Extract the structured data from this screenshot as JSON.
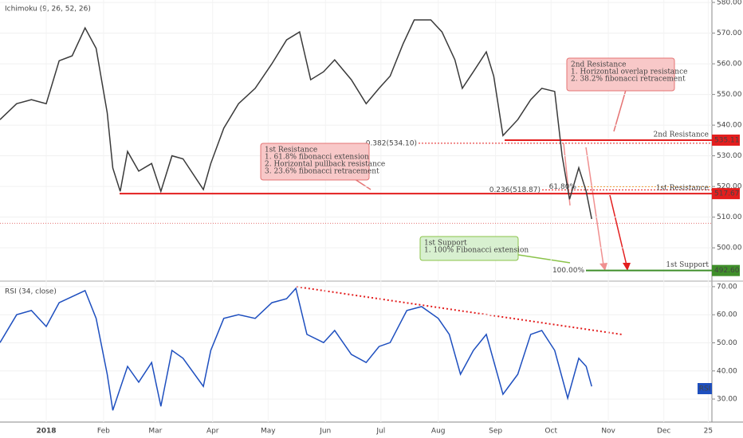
{
  "chart_data": [
    {
      "type": "line",
      "title": "Ichimoku (9, 26, 52, 26)",
      "color": "#3a3a3a",
      "x": [
        -25,
        -16,
        -8,
        0,
        7,
        14,
        21,
        27,
        33,
        36,
        40,
        44,
        50,
        57,
        62,
        68,
        74,
        85,
        89,
        96,
        104,
        113,
        122,
        130,
        137,
        143,
        150,
        156,
        165,
        173,
        180,
        186,
        193,
        199,
        208,
        214,
        221,
        225,
        231,
        238,
        242,
        247,
        255,
        262,
        268,
        275,
        279,
        283,
        288,
        292,
        295
      ],
      "values": [
        541.8,
        547,
        548.3,
        547,
        561,
        562.6,
        571.7,
        565,
        544,
        526,
        518.4,
        531.4,
        525,
        527.5,
        518.4,
        530,
        529,
        519,
        527.5,
        539,
        547,
        552,
        560,
        567.8,
        570.4,
        554.8,
        557.4,
        561.3,
        554.8,
        547,
        552,
        556,
        566.5,
        574.3,
        574.3,
        570.4,
        561.3,
        552,
        557.4,
        563.9,
        556,
        536.6,
        541.8,
        548.3,
        552,
        551,
        530,
        515.8,
        526.1,
        518.4,
        509.4
      ],
      "xlim": [
        -25,
        360
      ],
      "ylim": [
        489.4,
        580.8
      ],
      "xticks": [
        {
          "value": 0,
          "label": "2018"
        },
        {
          "value": 31,
          "label": "Feb"
        },
        {
          "value": 59,
          "label": "Mar"
        },
        {
          "value": 90,
          "label": "Apr"
        },
        {
          "value": 120,
          "label": "May"
        },
        {
          "value": 151,
          "label": "Jun"
        },
        {
          "value": 181,
          "label": "Jul"
        },
        {
          "value": 212,
          "label": "Aug"
        },
        {
          "value": 243,
          "label": "Sep"
        },
        {
          "value": 273,
          "label": "Oct"
        },
        {
          "value": 304,
          "label": "Nov"
        },
        {
          "value": 334,
          "label": "Dec"
        },
        {
          "value": 358,
          "label": "25"
        }
      ],
      "yticks": [
        {
          "value": 500,
          "label": "500.00"
        },
        {
          "value": 510,
          "label": "510.00"
        },
        {
          "value": 520,
          "label": "520.00"
        },
        {
          "value": 530,
          "label": "530.00"
        },
        {
          "value": 540,
          "label": "540.00"
        },
        {
          "value": 550,
          "label": "550.00"
        },
        {
          "value": 560,
          "label": "560.00"
        },
        {
          "value": 570,
          "label": "570.00"
        },
        {
          "value": 580,
          "label": "580.00"
        }
      ],
      "price_line": 508,
      "levels": [
        {
          "name": "2nd Resistance",
          "value": 535.11,
          "color": "#e31e1e"
        },
        {
          "name": "1st Resistance",
          "value": 517.67,
          "color": "#e31e1e"
        },
        {
          "name": "1st Support",
          "value": 492.6,
          "label": "492.60",
          "color": "#3f8f2a"
        }
      ],
      "fib": [
        {
          "value": 534.1,
          "label": "0.382(534.10)",
          "color": "#e31e1e"
        },
        {
          "value": 518.87,
          "label": "0.236(518.87)",
          "color": "#e31e1e"
        },
        {
          "value": 519.9,
          "label": "61.80%",
          "color": "#f0a040"
        },
        {
          "value": 492.6,
          "label": "100.00%",
          "color": "#3f8f2a"
        }
      ],
      "annotations": [
        {
          "lines": [
            "1st Resistance",
            "1. 61.8% fibonacci extension",
            "2. Horizontal pullback resistance",
            "3. 23.6% fibonacci retracement"
          ]
        },
        {
          "lines": [
            "2nd Resistance",
            "1. Horizontal overlap resistance",
            "2. 38.2% fibonacci retracement"
          ]
        },
        {
          "lines": [
            "1st Support",
            "1. 100% Fibonacci extension"
          ]
        }
      ]
    },
    {
      "type": "line",
      "title": "RSI (34, close)",
      "color": "#1e4fbf",
      "tag": "RSI",
      "x": [
        -25,
        -16,
        -8,
        0,
        7,
        21,
        27,
        33,
        36,
        44,
        50,
        57,
        62,
        68,
        74,
        85,
        89,
        96,
        104,
        113,
        122,
        130,
        135,
        141,
        150,
        156,
        165,
        173,
        180,
        186,
        195,
        203,
        212,
        218,
        224,
        231,
        238,
        247,
        255,
        262,
        268,
        275,
        282,
        288,
        292,
        295
      ],
      "values": [
        50.1,
        60,
        61.5,
        55.8,
        64.3,
        68.6,
        58.7,
        38.8,
        26,
        41.6,
        36,
        43,
        27.4,
        47.3,
        44.5,
        34.5,
        47.3,
        58.7,
        60,
        58.7,
        64.3,
        65.7,
        69.4,
        53,
        50.1,
        54.4,
        45.9,
        43,
        48.7,
        50.1,
        61.5,
        62.9,
        58.7,
        53,
        38.8,
        47.3,
        53,
        31.7,
        38.8,
        53,
        54.4,
        47.3,
        30.3,
        44.5,
        41.6,
        34.5
      ],
      "xlim": [
        -25,
        360
      ],
      "ylim": [
        21.8,
        71.4
      ],
      "yticks": [
        {
          "value": 30,
          "label": "30.00"
        },
        {
          "value": 40,
          "label": "40.00"
        },
        {
          "value": 50,
          "label": "50.00"
        },
        {
          "value": 60,
          "label": "60.00"
        },
        {
          "value": 70,
          "label": "70.00"
        }
      ]
    }
  ]
}
